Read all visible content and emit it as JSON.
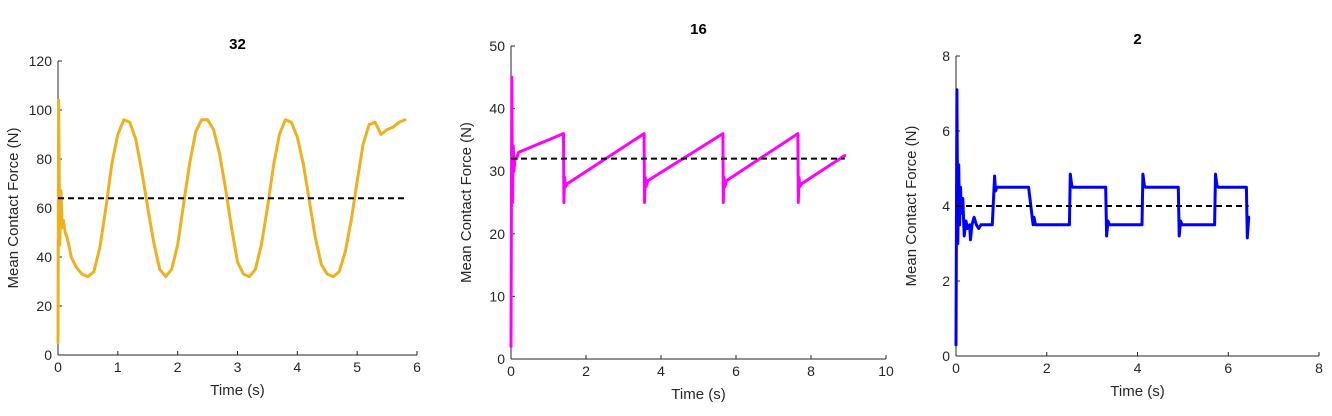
{
  "chart_data": [
    {
      "type": "line",
      "title": "32",
      "xlabel": "Time (s)",
      "ylabel": "Mean Contact Force (N)",
      "xlim": [
        0,
        6
      ],
      "ylim": [
        0,
        120
      ],
      "xticks": [
        "0",
        "1",
        "2",
        "3",
        "4",
        "5",
        "6"
      ],
      "yticks": [
        "0",
        "20",
        "40",
        "60",
        "80",
        "100",
        "120"
      ],
      "grid": false,
      "series": [
        {
          "color": "#EDB120",
          "x": [
            0,
            0.01,
            0.03,
            0.05,
            0.07,
            0.09,
            0.12,
            0.15,
            0.18,
            0.22,
            0.3,
            0.4,
            0.5,
            0.6,
            0.7,
            0.8,
            0.9,
            1.0,
            1.1,
            1.2,
            1.3,
            1.4,
            1.5,
            1.6,
            1.7,
            1.8,
            1.9,
            2.0,
            2.1,
            2.2,
            2.3,
            2.4,
            2.5,
            2.6,
            2.7,
            2.8,
            2.9,
            3.0,
            3.1,
            3.2,
            3.3,
            3.4,
            3.5,
            3.6,
            3.7,
            3.8,
            3.9,
            4.0,
            4.1,
            4.2,
            4.3,
            4.4,
            4.5,
            4.6,
            4.7,
            4.8,
            4.9,
            5.0,
            5.1,
            5.2,
            5.3,
            5.4,
            5.5,
            5.6,
            5.7,
            5.8
          ],
          "y": [
            5,
            104,
            45,
            67,
            52,
            55,
            50,
            48,
            45,
            40,
            36,
            33,
            32,
            34,
            44,
            60,
            78,
            90,
            96,
            95,
            88,
            75,
            60,
            46,
            35,
            32,
            35,
            45,
            62,
            78,
            91,
            96,
            96,
            92,
            82,
            68,
            52,
            38,
            33,
            32,
            35,
            45,
            60,
            77,
            90,
            96,
            95,
            89,
            78,
            63,
            48,
            37,
            33,
            32,
            34,
            42,
            55,
            71,
            86,
            94,
            95,
            90,
            92,
            93,
            95,
            96
          ]
        }
      ],
      "reference_line": {
        "y": 64,
        "color": "#000000",
        "style": "dashed"
      }
    },
    {
      "type": "line",
      "title": "16",
      "xlabel": "Time (s)",
      "ylabel": "Mean Contact Force (N)",
      "xlim": [
        0,
        10
      ],
      "ylim": [
        0,
        50
      ],
      "xticks": [
        "0",
        "2",
        "4",
        "6",
        "8",
        "10"
      ],
      "yticks": [
        "0",
        "10",
        "20",
        "30",
        "40",
        "50"
      ],
      "grid": false,
      "series": [
        {
          "color": "#FF00FF",
          "x": [
            0,
            0.02,
            0.04,
            0.06,
            0.08,
            0.1,
            0.15,
            0.2,
            1.4,
            1.41,
            1.43,
            1.45,
            1.5,
            3.55,
            3.56,
            3.58,
            3.6,
            3.65,
            5.65,
            5.66,
            5.68,
            5.7,
            5.75,
            7.65,
            7.66,
            7.68,
            7.7,
            7.75,
            8.9
          ],
          "y": [
            2,
            45,
            25,
            34,
            30,
            32,
            32,
            33,
            36,
            25,
            29,
            27.5,
            28,
            36,
            25,
            29,
            27.5,
            28.5,
            36,
            25,
            29,
            27.5,
            28.5,
            36,
            25,
            29,
            27.5,
            28,
            32.5
          ]
        }
      ],
      "reference_line": {
        "y": 32,
        "color": "#000000",
        "style": "dashed"
      }
    },
    {
      "type": "line",
      "title": "2",
      "xlabel": "Time (s)",
      "ylabel": "Mean Contact Force (N)",
      "xlim": [
        0,
        8
      ],
      "ylim": [
        0,
        8
      ],
      "xticks": [
        "0",
        "2",
        "4",
        "6",
        "8"
      ],
      "yticks": [
        "0",
        "2",
        "4",
        "6",
        "8"
      ],
      "grid": false,
      "series": [
        {
          "color": "#0000FF",
          "x": [
            0,
            0.02,
            0.04,
            0.06,
            0.08,
            0.1,
            0.12,
            0.15,
            0.18,
            0.22,
            0.25,
            0.3,
            0.32,
            0.35,
            0.4,
            0.45,
            0.5,
            0.55,
            0.6,
            0.8,
            0.85,
            0.87,
            0.9,
            1.6,
            1.7,
            1.72,
            1.75,
            2.5,
            2.52,
            2.55,
            2.58,
            3.3,
            3.32,
            3.35,
            3.38,
            4.1,
            4.12,
            4.15,
            4.18,
            4.9,
            4.92,
            4.95,
            4.98,
            5.7,
            5.72,
            5.75,
            5.78,
            6.4,
            6.42,
            6.45
          ],
          "y": [
            0.3,
            7.1,
            3.0,
            5.1,
            3.5,
            4.5,
            3.8,
            4.2,
            3.2,
            3.6,
            3.4,
            3.5,
            3.1,
            3.5,
            3.7,
            3.5,
            3.4,
            3.5,
            3.5,
            3.5,
            4.8,
            4.4,
            4.5,
            4.5,
            3.5,
            3.7,
            3.5,
            3.5,
            4.85,
            4.55,
            4.5,
            4.5,
            3.2,
            3.6,
            3.5,
            3.5,
            4.85,
            4.55,
            4.5,
            4.5,
            3.2,
            3.6,
            3.5,
            3.5,
            4.85,
            4.55,
            4.5,
            4.5,
            3.15,
            3.7
          ]
        }
      ],
      "reference_line": {
        "y": 4,
        "color": "#000000",
        "style": "dashed"
      }
    }
  ]
}
